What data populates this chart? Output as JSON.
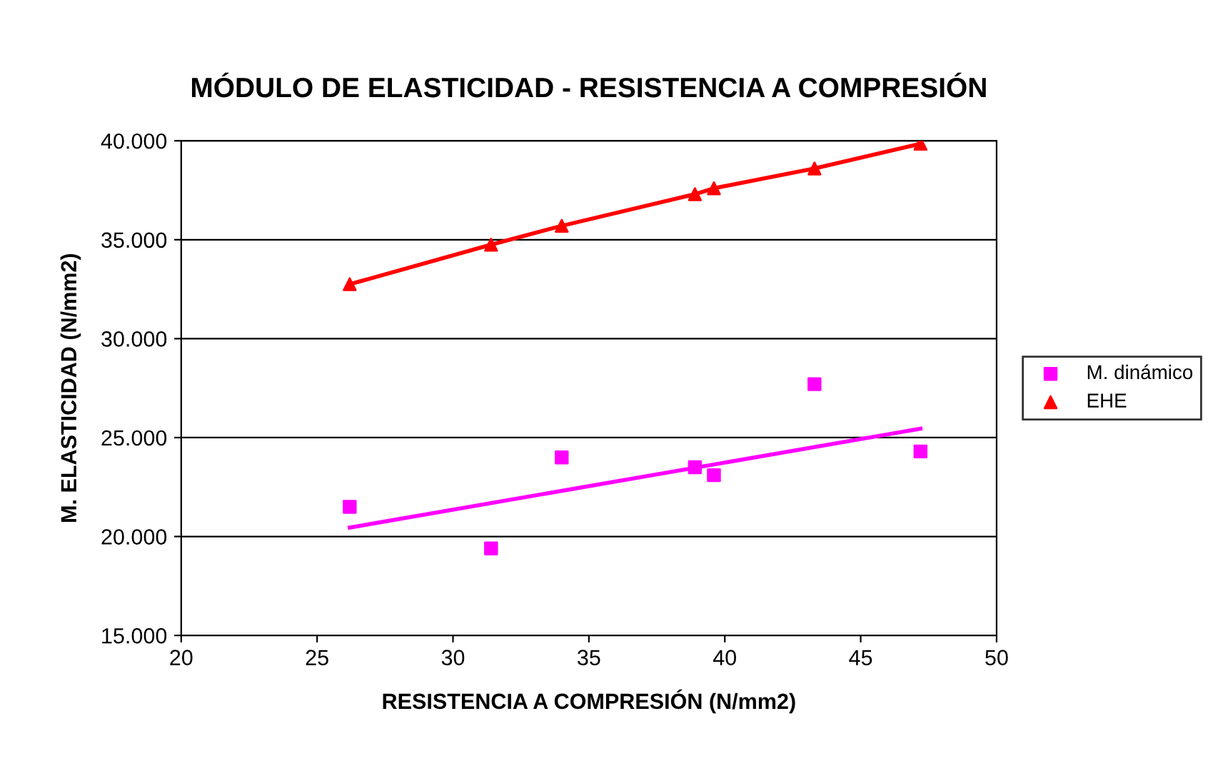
{
  "chart_data": {
    "type": "scatter",
    "title": "MÓDULO DE ELASTICIDAD - RESISTENCIA A COMPRESIÓN",
    "xlabel": "RESISTENCIA A COMPRESIÓN (N/mm2)",
    "ylabel": "M. ELASTICIDAD (N/mm2)",
    "x": [
      26.2,
      31.4,
      34.0,
      38.9,
      39.6,
      43.3,
      47.2
    ],
    "series": [
      {
        "name": "M. dinámico",
        "color": "#ff00ff",
        "marker": "square",
        "values": [
          21500,
          19400,
          24000,
          23500,
          23100,
          27700,
          24300
        ]
      },
      {
        "name": "EHE",
        "color": "#ff0000",
        "marker": "triangle",
        "values": [
          32750,
          34750,
          35700,
          37300,
          37600,
          38600,
          39850
        ]
      },
      {
        "type": "line",
        "color": "#ff00ff",
        "marker": "none",
        "x": [
          26.2,
          47.2
        ],
        "values": [
          20450,
          25450
        ]
      },
      {
        "type": "line",
        "color": "#ff0000",
        "marker": "none",
        "x": [
          26.2,
          31.4,
          34.0,
          38.9,
          39.6,
          43.3,
          47.2
        ],
        "values": [
          32750,
          34750,
          35700,
          37300,
          37600,
          38600,
          39850
        ]
      }
    ],
    "xlim": [
      20,
      50
    ],
    "xticks": [
      20,
      25,
      30,
      35,
      40,
      45,
      50
    ],
    "ylim": [
      15000,
      40000
    ],
    "yticks": [
      {
        "value": 15000,
        "label": "15.000"
      },
      {
        "value": 20000,
        "label": "20.000"
      },
      {
        "value": 25000,
        "label": "25.000"
      },
      {
        "value": 30000,
        "label": "30.000"
      },
      {
        "value": 35000,
        "label": "35.000"
      },
      {
        "value": 40000,
        "label": "40.000"
      }
    ],
    "grid": "y",
    "legend": "right"
  }
}
